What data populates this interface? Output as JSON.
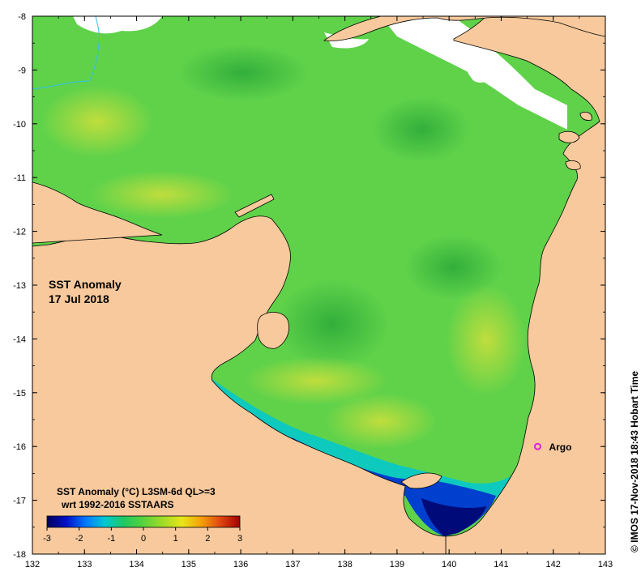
{
  "map": {
    "title_line1": "SST Anomaly",
    "title_line2": "17 Jul 2018",
    "longitude_ticks": [
      "132",
      "133",
      "134",
      "135",
      "136",
      "137",
      "138",
      "139",
      "140",
      "141",
      "142",
      "143"
    ],
    "latitude_ticks": [
      "-8",
      "-9",
      "-10",
      "-11",
      "-12",
      "-13",
      "-14",
      "-15",
      "-16",
      "-17",
      "-18"
    ],
    "lon_range": [
      132,
      143
    ],
    "lat_range": [
      -18,
      -8
    ],
    "land_color": "#f7c99c",
    "ocean_base_color": "#5fd24a"
  },
  "markers": [
    {
      "label": "Argo",
      "lon": 141.7,
      "lat": -16.0,
      "color": "#e020e0"
    }
  ],
  "colorbar": {
    "title_line1": "SST Anomaly (°C) L3SM-6d QL>=3",
    "title_line2": "wrt 1992-2016 SSTAARS",
    "tick_labels": [
      "-3",
      "-2",
      "-1",
      "0",
      "1",
      "2",
      "3"
    ],
    "range": [
      -3,
      3
    ],
    "colors": [
      "#00005a",
      "#0010c8",
      "#0078ff",
      "#00c8d2",
      "#20c860",
      "#58d23c",
      "#a0dc28",
      "#e8e618",
      "#f5a00a",
      "#e04610",
      "#a00000"
    ]
  },
  "credit": "© IMOS 17-Nov-2018 18:43 Hobart Time"
}
